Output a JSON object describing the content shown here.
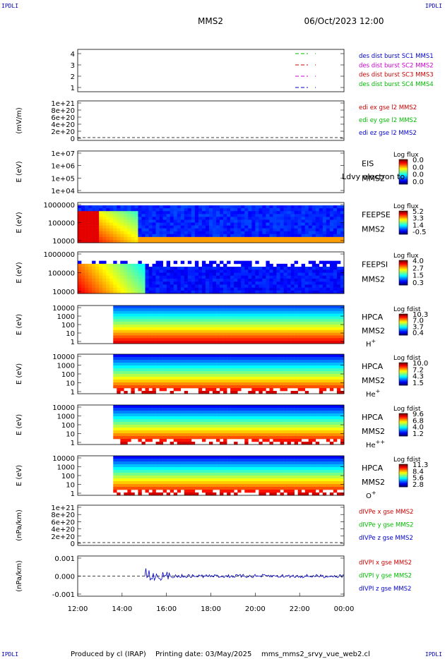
{
  "header": {
    "mission": "MMS2",
    "datetime": "06/Oct/2023 12:00",
    "corner_label": "IPDLI"
  },
  "footer": {
    "produced_by": "Produced by cl (IRAP)",
    "printing_date": "Printing date: 03/May/2025",
    "script": "mms_mms2_srvy_vue_web2.cl"
  },
  "time_axis": {
    "ticks": [
      "12:00",
      "14:00",
      "16:00",
      "18:00",
      "20:00",
      "22:00",
      "00:00"
    ]
  },
  "chart_data": [
    {
      "type": "line",
      "name": "burst",
      "yticks": [
        "4",
        "3",
        "2",
        "1"
      ],
      "legend": [
        {
          "text": "des dist burst SC1 MMS1",
          "color": "#0000cc"
        },
        {
          "text": "des dist burst SC2 MMS2",
          "color": "#cc00cc"
        },
        {
          "text": "des dist burst SC3 MMS3",
          "color": "#cc0000"
        },
        {
          "text": "des dist burst SC4 MMS4",
          "color": "#00bb00"
        }
      ],
      "series": [
        {
          "y": 4,
          "color": "#00bb00"
        },
        {
          "y": 3,
          "color": "#cc0000"
        },
        {
          "y": 2,
          "color": "#cc00cc"
        },
        {
          "y": 1,
          "color": "#0000cc"
        }
      ]
    },
    {
      "type": "line",
      "name": "edi",
      "ylabel": "(mV/m)",
      "yticks": [
        "1e+21",
        "8e+20",
        "6e+20",
        "4e+20",
        "2e+20",
        "0"
      ],
      "legend": [
        {
          "text": "edi ex gse l2 MMS2",
          "color": "#cc0000"
        },
        {
          "text": "edi ey gse l2 MMS2",
          "color": "#00bb00"
        },
        {
          "text": "edi ez gse l2 MMS2",
          "color": "#0000cc"
        }
      ]
    },
    {
      "type": "heatmap",
      "name": "eis",
      "ylabel": "E (eV)",
      "yticks": [
        "1e+07",
        "1e+06",
        "1e+05",
        "1e+04"
      ],
      "labels": [
        "EIS",
        "MMS2"
      ],
      "cb_title": "Log flux",
      "cb_ticks": [
        "0.0",
        "0.0",
        "0.0",
        "0.0"
      ],
      "overlay": "Ldvy electron to"
    },
    {
      "type": "heatmap",
      "name": "feepse",
      "ylabel": "E (eV)",
      "yticks": [
        "1000000",
        "100000",
        "10000"
      ],
      "labels": [
        "FEEPSE",
        "MMS2"
      ],
      "cb_title": "Log flux",
      "cb_ticks": [
        "5.2",
        "3.3",
        "1.4",
        "-0.5"
      ]
    },
    {
      "type": "heatmap",
      "name": "feepsi",
      "ylabel": "E (eV)",
      "yticks": [
        "1000000",
        "100000",
        "10000"
      ],
      "labels": [
        "FEEPSI",
        "MMS2"
      ],
      "cb_title": "Log flux",
      "cb_ticks": [
        "4.0",
        "2.7",
        "1.5",
        "0.3"
      ]
    },
    {
      "type": "heatmap",
      "name": "hpca-h",
      "ylabel": "E (eV)",
      "yticks": [
        "10000",
        "1000",
        "100",
        "10",
        "1"
      ],
      "labels": [
        "HPCA",
        "MMS2"
      ],
      "species": "H",
      "charge": "+",
      "cb_title": "Log fdist",
      "cb_ticks": [
        "10.3",
        "7.0",
        "3.7",
        "0.4"
      ]
    },
    {
      "type": "heatmap",
      "name": "hpca-he1",
      "ylabel": "E (eV)",
      "yticks": [
        "10000",
        "1000",
        "100",
        "10",
        "1"
      ],
      "labels": [
        "HPCA",
        "MMS2"
      ],
      "species": "He",
      "charge": "+",
      "cb_title": "Log fdist",
      "cb_ticks": [
        "10.0",
        "7.2",
        "4.3",
        "1.5"
      ]
    },
    {
      "type": "heatmap",
      "name": "hpca-he2",
      "ylabel": "E (eV)",
      "yticks": [
        "10000",
        "1000",
        "100",
        "10",
        "1"
      ],
      "labels": [
        "HPCA",
        "MMS2"
      ],
      "species": "He",
      "charge": "++",
      "cb_title": "Log fdist",
      "cb_ticks": [
        "9.6",
        "6.8",
        "4.0",
        "1.2"
      ]
    },
    {
      "type": "heatmap",
      "name": "hpca-o",
      "ylabel": "E (eV)",
      "yticks": [
        "10000",
        "1000",
        "100",
        "10",
        "1"
      ],
      "labels": [
        "HPCA",
        "MMS2"
      ],
      "species": "O",
      "charge": "+",
      "cb_title": "Log fdist",
      "cb_ticks": [
        "11.3",
        "8.4",
        "5.6",
        "2.8"
      ]
    },
    {
      "type": "line",
      "name": "divpe",
      "ylabel": "(nPa/km)",
      "yticks": [
        "1e+21",
        "8e+20",
        "6e+20",
        "4e+20",
        "2e+20",
        "0"
      ],
      "legend": [
        {
          "text": "dIVPe x gse MMS2",
          "color": "#cc0000"
        },
        {
          "text": "dIVPe y gse MMS2",
          "color": "#00bb00"
        },
        {
          "text": "dIVPe z gse MMS2",
          "color": "#0000cc"
        }
      ]
    },
    {
      "type": "line",
      "name": "divpi",
      "ylabel": "(nPa/km)",
      "yticks": [
        "0.001",
        "0.000",
        "-0.001"
      ],
      "legend": [
        {
          "text": "dIVPI x gse MMS2",
          "color": "#cc0000"
        },
        {
          "text": "dIVPI y gse MMS2",
          "color": "#00bb00"
        },
        {
          "text": "dIVPI z gse MMS2",
          "color": "#0000cc"
        }
      ]
    }
  ]
}
